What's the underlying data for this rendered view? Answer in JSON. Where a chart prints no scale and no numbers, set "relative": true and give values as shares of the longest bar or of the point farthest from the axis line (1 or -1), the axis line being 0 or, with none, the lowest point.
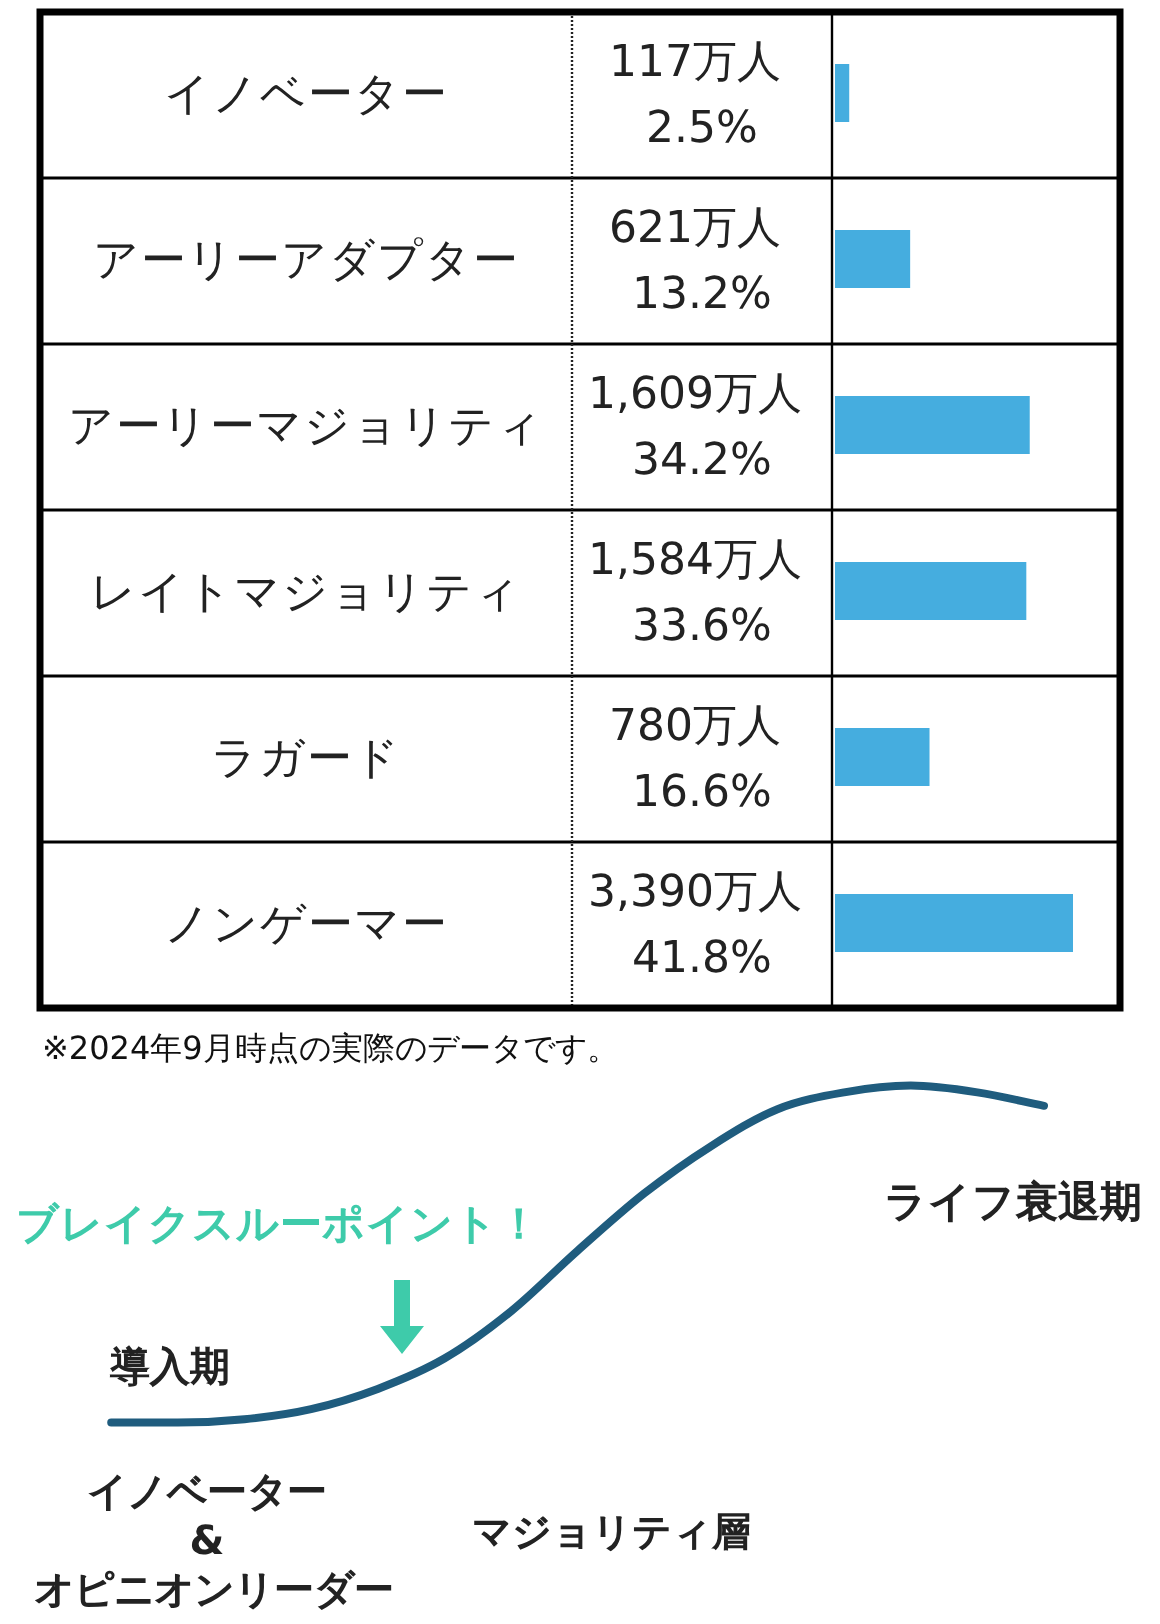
{
  "chart_data": [
    {
      "type": "bar",
      "orientation": "horizontal",
      "categories": [
        "イノベーター",
        "アーリーアダプター",
        "アーリーマジョリティ",
        "レイトマジョリティ",
        "ラガード",
        "ノンゲーマー"
      ],
      "values": [
        2.5,
        13.2,
        34.2,
        33.6,
        16.6,
        41.8
      ],
      "value_labels": [
        "117万人 2.5%",
        "621万人 13.2%",
        "1,609万人 34.2%",
        "1,584万人 33.6%",
        "780万人 16.6%",
        "3,390万人 41.8%"
      ],
      "color": "#45addf",
      "annotations": [
        "※2024年9月時点の実際のデータです。"
      ]
    },
    {
      "type": "line",
      "relative": true,
      "categories": [
        null,
        null,
        null,
        null,
        null,
        null,
        null,
        null,
        null,
        null,
        null,
        null,
        null,
        null,
        null
      ],
      "series": [
        {
          "color": "#1f5c7e",
          "values": [
            0,
            0,
            0.01,
            0.04,
            0.1,
            0.19,
            0.33,
            0.51,
            0.68,
            0.82,
            0.93,
            0.98,
            1,
            0.98,
            0.94
          ]
        }
      ],
      "annotations": [
        "導入期",
        "ブレイクスルーポイント！",
        "ライフ衰退期",
        "イノベーター & オピニオンリーダー",
        "マジョリティ層"
      ]
    }
  ]
}
